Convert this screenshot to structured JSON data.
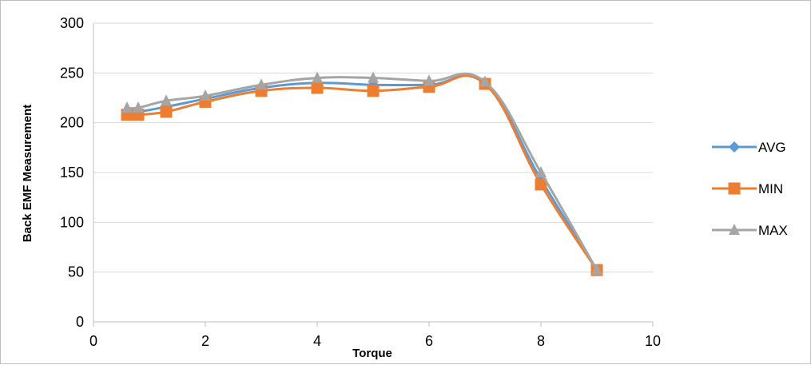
{
  "chart_data": {
    "type": "scatter",
    "title": "",
    "xlabel": "Torque",
    "ylabel": "Back EMF Measurement",
    "xlim": [
      0,
      10
    ],
    "ylim": [
      0,
      300
    ],
    "x_ticks": [
      "0",
      "2",
      "4",
      "6",
      "8",
      "10"
    ],
    "y_ticks": [
      "0",
      "50",
      "100",
      "150",
      "200",
      "250",
      "300"
    ],
    "grid": "horizontal",
    "legend_position": "right",
    "smoothed_lines": true,
    "series": [
      {
        "name": "AVG",
        "color": "#5B9BD5",
        "marker": "diamond",
        "x": [
          0.6,
          0.8,
          1.3,
          2,
          3,
          4,
          5,
          6,
          7,
          8,
          9
        ],
        "y": [
          211,
          211,
          216,
          224,
          235,
          240,
          238,
          238,
          239,
          143,
          52
        ]
      },
      {
        "name": "MIN",
        "color": "#ED7D31",
        "marker": "square",
        "x": [
          0.6,
          0.8,
          1.3,
          2,
          3,
          4,
          5,
          6,
          7,
          8,
          9
        ],
        "y": [
          208,
          208,
          211,
          221,
          232,
          235,
          232,
          236,
          239,
          138,
          52
        ]
      },
      {
        "name": "MAX",
        "color": "#A5A5A5",
        "marker": "triangle",
        "x": [
          0.6,
          0.8,
          1.3,
          2,
          3,
          4,
          5,
          6,
          7,
          8,
          9
        ],
        "y": [
          215,
          215,
          222,
          227,
          238,
          245,
          245,
          242,
          241,
          150,
          52
        ]
      }
    ]
  }
}
